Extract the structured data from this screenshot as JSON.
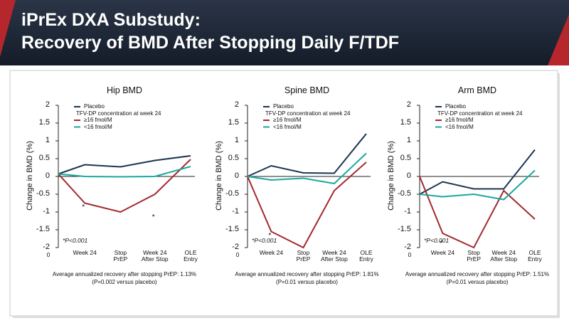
{
  "header": {
    "title": [
      "iPrEx DXA Substudy:",
      "Recovery of BMD After Stopping Daily F/TDF"
    ]
  },
  "chart_data": [
    {
      "type": "line",
      "title": "Hip BMD",
      "y_label": "Change in BMD (%)",
      "categories": [
        "0",
        "Week 24",
        "Stop PrEP",
        "Week 24 After Stop",
        "OLE Entry"
      ],
      "legend_title": "TFV-DP concentration at week 24",
      "series": [
        {
          "name": "Placebo",
          "color": "#1c3553",
          "values": [
            0.07,
            0.33,
            0.27,
            0.45,
            0.58
          ]
        },
        {
          "name": "≥16 fmol/M",
          "color": "#a32a2f",
          "values": [
            0.07,
            -0.75,
            -1.0,
            -0.5,
            0.48
          ]
        },
        {
          "name": "<16 fmol/M",
          "color": "#1aa99c",
          "values": [
            0.07,
            0.0,
            -0.01,
            0.0,
            0.28
          ]
        }
      ],
      "ylim": [
        -2,
        2
      ],
      "yticks": [
        2,
        1.5,
        1,
        0.5,
        0,
        -0.5,
        -1,
        -1.5,
        -2
      ],
      "markers": [
        {
          "text": "*",
          "category": 1,
          "value": -0.84
        },
        {
          "text": "*",
          "category": 3,
          "value": -1.12
        }
      ],
      "note": "*P<0.001",
      "footnote": [
        "Average annualized recovery after stopping PrEP: 1.13%",
        "(P=0.002 versus placebo)"
      ]
    },
    {
      "type": "line",
      "title": "Spine BMD",
      "y_label": "Change in BMD (%)",
      "categories": [
        "0",
        "Week 24",
        "Stop PrEP",
        "Week 24 After Stop",
        "OLE Entry"
      ],
      "legend_title": "TFV-DP concentration at week 24",
      "series": [
        {
          "name": "Placebo",
          "color": "#1c3553",
          "values": [
            0,
            0.3,
            0.1,
            0.09,
            1.2
          ]
        },
        {
          "name": "≥16 fmol/M",
          "color": "#a32a2f",
          "values": [
            0,
            -1.55,
            -2.0,
            -0.4,
            0.4
          ]
        },
        {
          "name": "<16 fmol/M",
          "color": "#1aa99c",
          "values": [
            0,
            -0.1,
            -0.05,
            -0.2,
            0.65
          ]
        }
      ],
      "ylim": [
        -2,
        2
      ],
      "yticks": [
        2,
        1.5,
        1,
        0.5,
        0,
        -0.5,
        -1,
        -1.5,
        -2
      ],
      "markers": [
        {
          "text": "*",
          "category": 1,
          "value": -1.64
        }
      ],
      "note": "*P<0.001",
      "footnote": [
        "Average annualized recovery after stopping PrEP: 1.81%",
        "(P=0.01 versus placebo)"
      ]
    },
    {
      "type": "line",
      "title": "Arm BMD",
      "y_label": "Change in BMD (%)",
      "categories": [
        "0",
        "Week 24",
        "Stop PrEP",
        "Week 24 After Stop",
        "OLE Entry"
      ],
      "legend_title": "TFV-DP concentration at week 24",
      "series": [
        {
          "name": "Placebo",
          "color": "#1c3553",
          "values": [
            -0.5,
            -0.15,
            -0.35,
            -0.35,
            0.75
          ]
        },
        {
          "name": "≥16 fmol/M",
          "color": "#a32a2f",
          "values": [
            0,
            -1.6,
            -2.0,
            -0.4,
            -1.2
          ]
        },
        {
          "name": "<16 fmol/M",
          "color": "#1aa99c",
          "values": [
            -0.5,
            -0.57,
            -0.5,
            -0.65,
            0.17
          ]
        }
      ],
      "ylim": [
        -2,
        2
      ],
      "yticks": [
        2,
        1.5,
        1,
        0.5,
        0,
        -0.5,
        -1,
        -1.5,
        -2
      ],
      "markers": [
        {
          "text": "*",
          "category": 1,
          "value": -1.85
        }
      ],
      "note": "*P<0.001",
      "footnote": [
        "Average annualized recovery after stopping PrEP: 1.51%",
        "(P=0.01 versus placebo)"
      ]
    }
  ]
}
